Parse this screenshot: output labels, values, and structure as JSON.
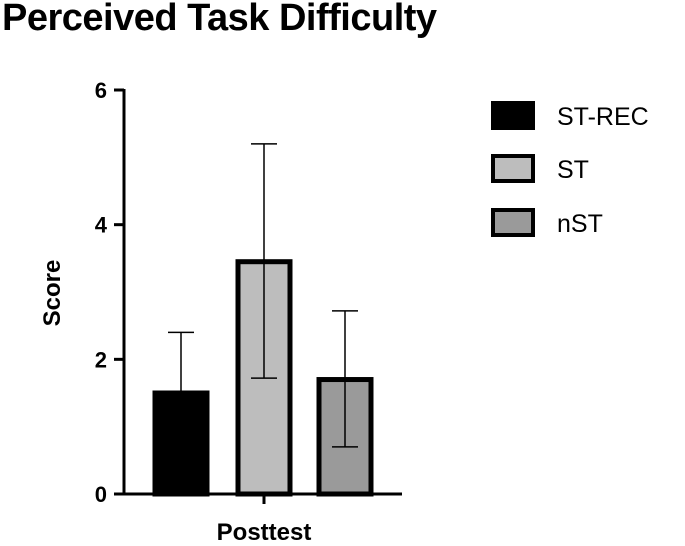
{
  "chart_data": {
    "type": "bar",
    "title": "Perceived Task Difficulty",
    "xlabel": "Posttest",
    "ylabel": "Score",
    "ylim": [
      0,
      6
    ],
    "yticks": [
      0,
      2,
      4,
      6
    ],
    "categories": [
      "Posttest"
    ],
    "series": [
      {
        "name": "ST-REC",
        "values": [
          1.5
        ],
        "error_upper": [
          2.4
        ],
        "error_lower": [
          1.5
        ],
        "color": "#000000"
      },
      {
        "name": "ST",
        "values": [
          3.45
        ],
        "error_upper": [
          5.2
        ],
        "error_lower": [
          1.72
        ],
        "color": "#bdbdbd"
      },
      {
        "name": "nST",
        "values": [
          1.7
        ],
        "error_upper": [
          2.72
        ],
        "error_lower": [
          0.7
        ],
        "color": "#9a9a9a"
      }
    ],
    "legend": "right",
    "grid": false
  }
}
